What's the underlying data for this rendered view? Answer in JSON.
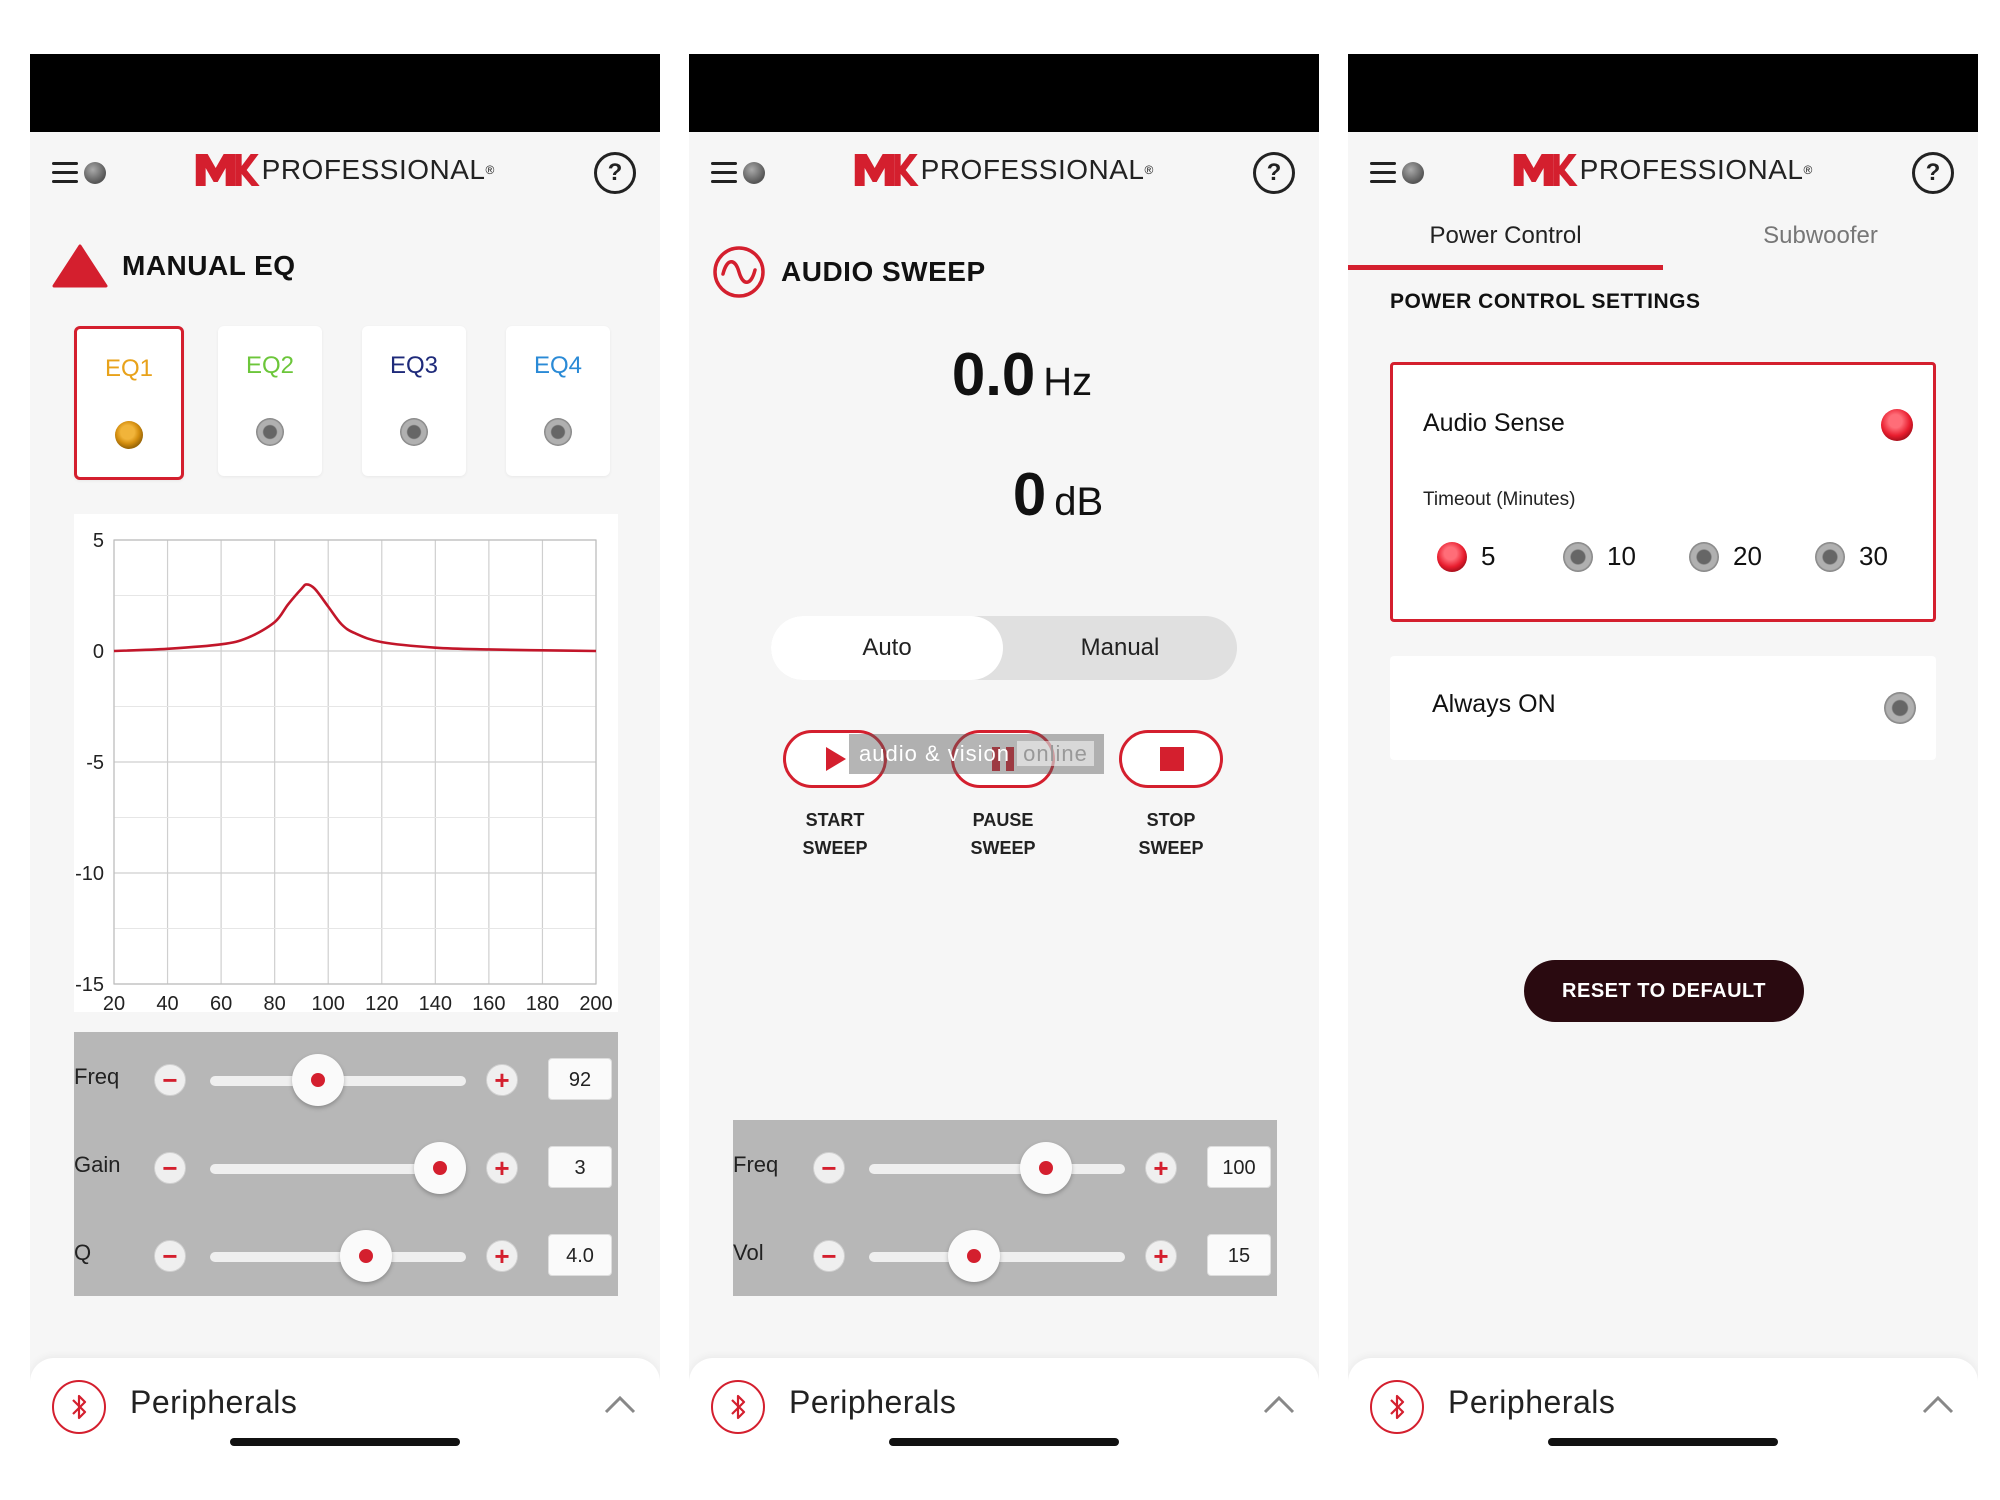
{
  "brand": {
    "name": "PROFESSIONAL",
    "reg": "®"
  },
  "colors": {
    "accent": "#d41f2e",
    "eq1": "#e8a21a",
    "eq2": "#6cc63a",
    "eq3": "#1e2a7a",
    "eq4": "#2a8ad6",
    "dark_button": "#2a0a10"
  },
  "footer": {
    "peripherals": "Peripherals"
  },
  "eq_screen": {
    "title": "MANUAL EQ",
    "presets": [
      {
        "label": "EQ1",
        "active": true
      },
      {
        "label": "EQ2",
        "active": false
      },
      {
        "label": "EQ3",
        "active": false
      },
      {
        "label": "EQ4",
        "active": false
      }
    ],
    "sliders": [
      {
        "name": "Freq",
        "value": "92",
        "level": 0.42
      },
      {
        "name": "Gain",
        "value": "3",
        "level": 0.9
      },
      {
        "name": "Q",
        "value": "4.0",
        "level": 0.61
      }
    ]
  },
  "chart_data": {
    "type": "line",
    "title": "",
    "xlabel": "",
    "ylabel": "",
    "xlim": [
      20,
      200
    ],
    "ylim": [
      -15,
      5
    ],
    "x_ticks": [
      "20",
      "40",
      "60",
      "80",
      "100",
      "120",
      "140",
      "160",
      "180",
      "200"
    ],
    "y_ticks": [
      "5",
      "0",
      "-5",
      "-10",
      "-15"
    ],
    "grid": true,
    "series": [
      {
        "x": [
          20,
          40,
          60,
          70,
          80,
          85,
          90,
          92,
          95,
          100,
          105,
          110,
          120,
          140,
          160,
          180,
          200
        ],
        "y": [
          0,
          0.1,
          0.3,
          0.6,
          1.3,
          2.1,
          2.8,
          3.0,
          2.8,
          2.0,
          1.2,
          0.8,
          0.4,
          0.15,
          0.07,
          0.03,
          0
        ]
      }
    ]
  },
  "sweep_screen": {
    "title": "AUDIO SWEEP",
    "freq": {
      "value": "0.0",
      "unit": "Hz"
    },
    "db": {
      "value": "0",
      "unit": "dB"
    },
    "modes": [
      "Auto",
      "Manual"
    ],
    "buttons": [
      {
        "line1": "START",
        "line2": "SWEEP"
      },
      {
        "line1": "PAUSE",
        "line2": "SWEEP"
      },
      {
        "line1": "STOP",
        "line2": "SWEEP"
      }
    ],
    "watermark": {
      "part1": "audio & vision",
      "part2": "online"
    },
    "sliders": [
      {
        "name": "Freq",
        "value": "100",
        "level": 0.69
      },
      {
        "name": "Vol",
        "value": "15",
        "level": 0.41
      }
    ]
  },
  "power_screen": {
    "tabs": [
      "Power Control",
      "Subwoofer"
    ],
    "heading": "POWER CONTROL SETTINGS",
    "audio_sense": {
      "label": "Audio Sense",
      "timeout_label": "Timeout (Minutes)",
      "options": [
        "5",
        "10",
        "20",
        "30"
      ],
      "selected": "5"
    },
    "always_on": {
      "label": "Always ON"
    },
    "reset_label": "RESET TO DEFAULT"
  }
}
